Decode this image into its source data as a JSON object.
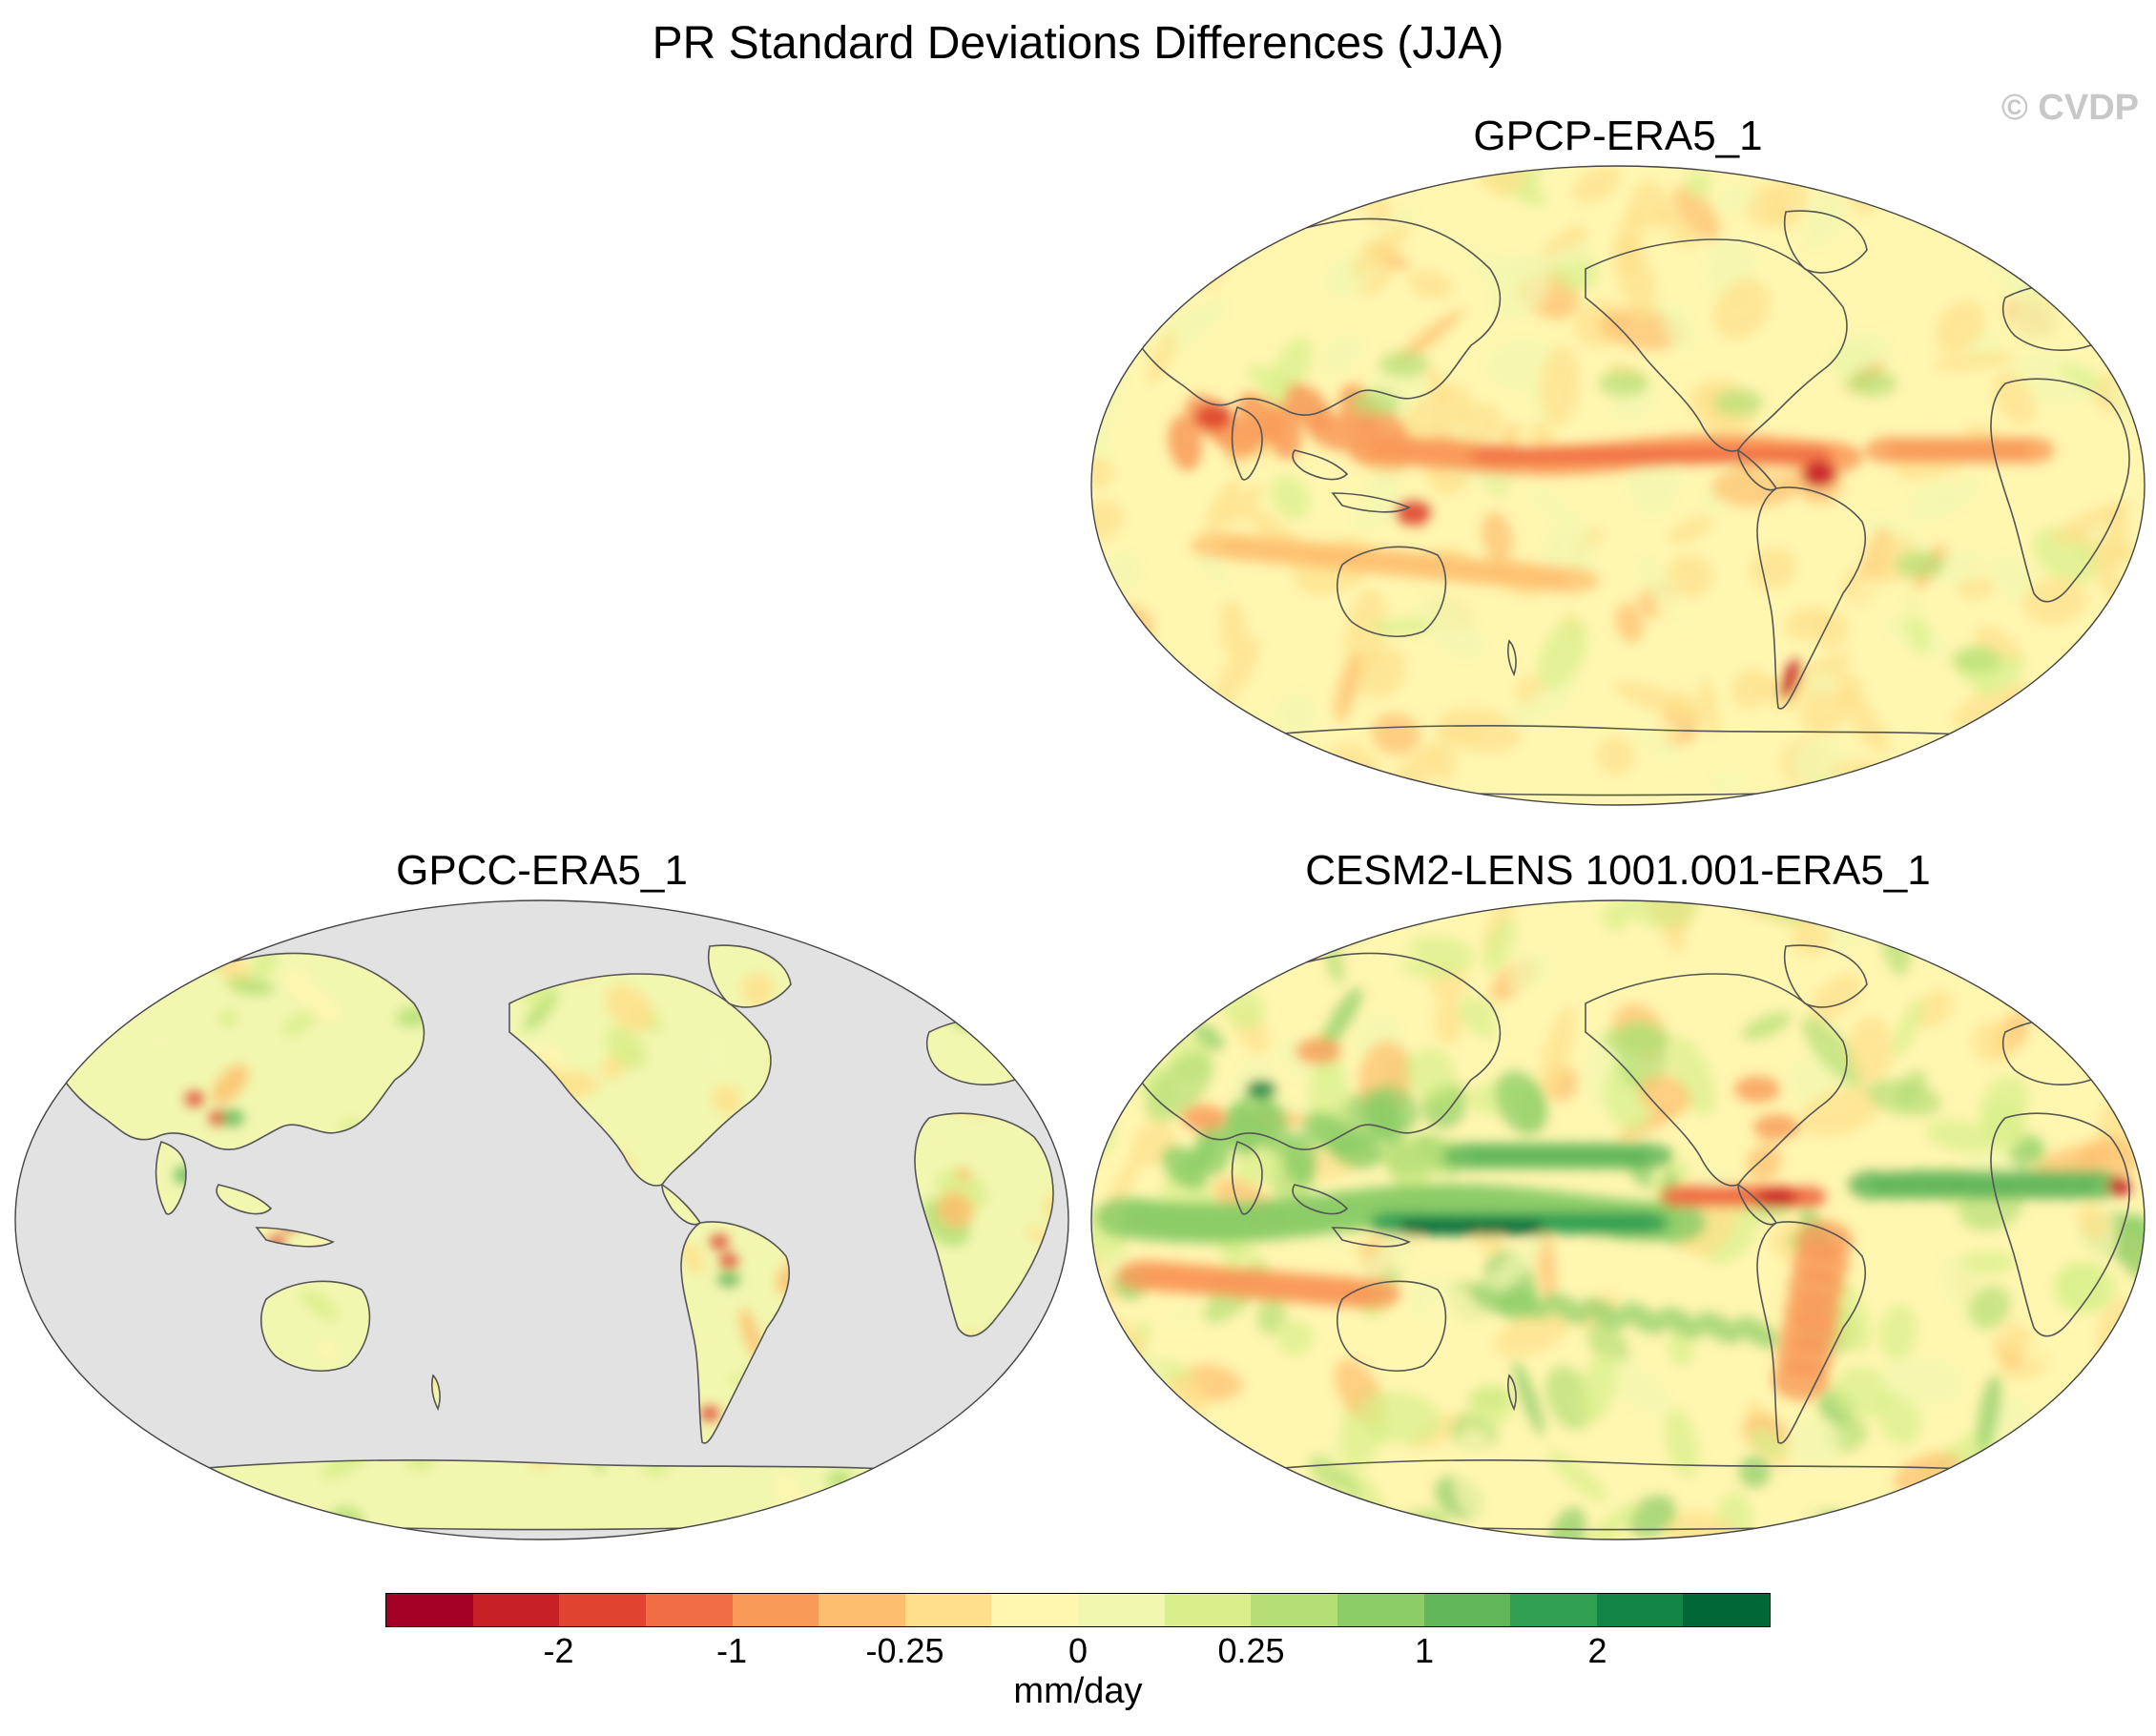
{
  "title": "PR Standard Deviations Differences (JJA)",
  "copyright": "© CVDP",
  "panels": [
    {
      "title": "GPCP-ERA5_1",
      "palette": "gpcp"
    },
    {
      "title": "GPCC-ERA5_1",
      "palette": "gpcc"
    },
    {
      "title": "CESM2-LENS 1001.001-ERA5_1",
      "palette": "cesm"
    }
  ],
  "colorbar": {
    "units": "mm/day",
    "colors": [
      "#a50026",
      "#c82027",
      "#e04430",
      "#f16d43",
      "#f99a59",
      "#fdbf6f",
      "#fee08b",
      "#fff6b0",
      "#f2f7b0",
      "#d9ef8b",
      "#b5de76",
      "#8ccd67",
      "#62b75a",
      "#31a052",
      "#138645",
      "#006837"
    ],
    "labels": [
      "-2",
      "-1",
      "-0.25",
      "0",
      "0.25",
      "1",
      "2"
    ]
  },
  "colors": {
    "land_missing": "#e2e2e2",
    "coast": "#555555"
  }
}
